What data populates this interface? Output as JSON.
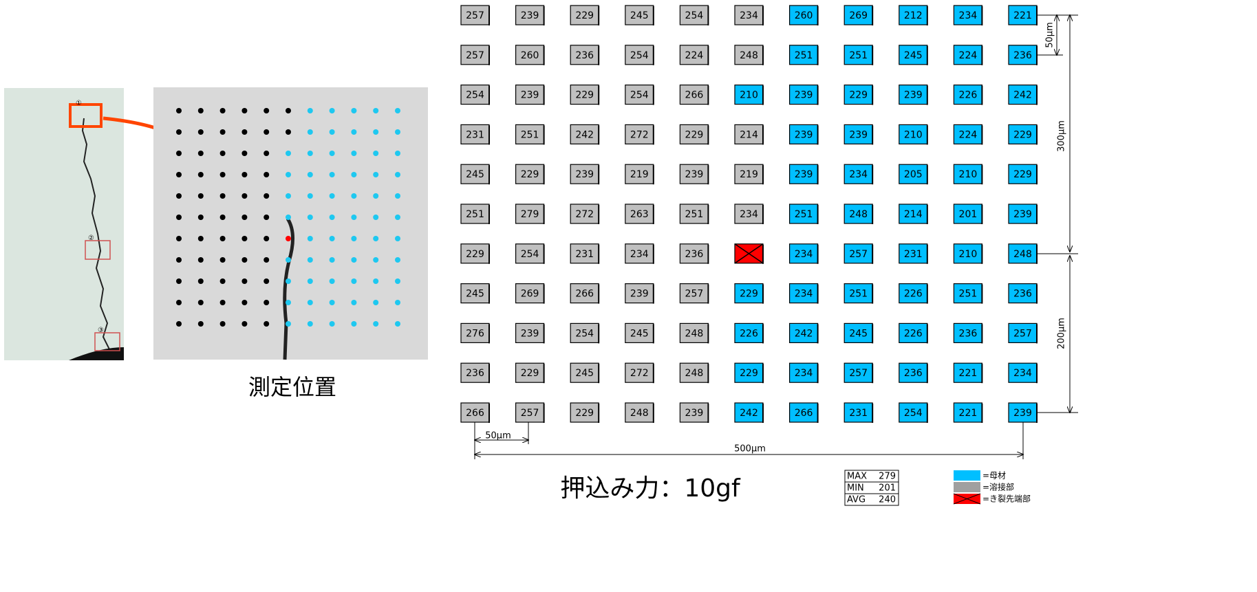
{
  "photo": {
    "markers": [
      "①",
      "②",
      "③"
    ],
    "caption": "測定位置"
  },
  "grid": {
    "cells": [
      [
        {
          "value": 257,
          "color": "#c0c0c0"
        },
        {
          "value": 239,
          "color": "#c0c0c0"
        },
        {
          "value": 229,
          "color": "#c0c0c0"
        },
        {
          "value": 245,
          "color": "#c0c0c0"
        },
        {
          "value": 254,
          "color": "#c0c0c0"
        },
        {
          "value": 234,
          "color": "#c0c0c0"
        },
        {
          "value": 260,
          "color": "#00bfff"
        },
        {
          "value": 269,
          "color": "#00bfff"
        },
        {
          "value": 212,
          "color": "#00bfff"
        },
        {
          "value": 234,
          "color": "#00bfff"
        },
        {
          "value": 221,
          "color": "#00bfff"
        }
      ],
      [
        {
          "value": 257,
          "color": "#c0c0c0"
        },
        {
          "value": 260,
          "color": "#c0c0c0"
        },
        {
          "value": 236,
          "color": "#c0c0c0"
        },
        {
          "value": 254,
          "color": "#c0c0c0"
        },
        {
          "value": 224,
          "color": "#c0c0c0"
        },
        {
          "value": 248,
          "color": "#c0c0c0"
        },
        {
          "value": 251,
          "color": "#00bfff"
        },
        {
          "value": 251,
          "color": "#00bfff"
        },
        {
          "value": 245,
          "color": "#00bfff"
        },
        {
          "value": 224,
          "color": "#00bfff"
        },
        {
          "value": 236,
          "color": "#00bfff"
        }
      ],
      [
        {
          "value": 254,
          "color": "#c0c0c0"
        },
        {
          "value": 239,
          "color": "#c0c0c0"
        },
        {
          "value": 229,
          "color": "#c0c0c0"
        },
        {
          "value": 254,
          "color": "#c0c0c0"
        },
        {
          "value": 266,
          "color": "#c0c0c0"
        },
        {
          "value": 210,
          "color": "#00bfff"
        },
        {
          "value": 239,
          "color": "#00bfff"
        },
        {
          "value": 229,
          "color": "#00bfff"
        },
        {
          "value": 239,
          "color": "#00bfff"
        },
        {
          "value": 226,
          "color": "#00bfff"
        },
        {
          "value": 242,
          "color": "#00bfff"
        }
      ],
      [
        {
          "value": 231,
          "color": "#c0c0c0"
        },
        {
          "value": 251,
          "color": "#c0c0c0"
        },
        {
          "value": 242,
          "color": "#c0c0c0"
        },
        {
          "value": 272,
          "color": "#c0c0c0"
        },
        {
          "value": 229,
          "color": "#c0c0c0"
        },
        {
          "value": 214,
          "color": "#c0c0c0"
        },
        {
          "value": 239,
          "color": "#00bfff"
        },
        {
          "value": 239,
          "color": "#00bfff"
        },
        {
          "value": 210,
          "color": "#00bfff"
        },
        {
          "value": 224,
          "color": "#00bfff"
        },
        {
          "value": 229,
          "color": "#00bfff"
        }
      ],
      [
        {
          "value": 245,
          "color": "#c0c0c0"
        },
        {
          "value": 229,
          "color": "#c0c0c0"
        },
        {
          "value": 239,
          "color": "#c0c0c0"
        },
        {
          "value": 219,
          "color": "#c0c0c0"
        },
        {
          "value": 239,
          "color": "#c0c0c0"
        },
        {
          "value": 219,
          "color": "#c0c0c0"
        },
        {
          "value": 239,
          "color": "#00bfff"
        },
        {
          "value": 234,
          "color": "#00bfff"
        },
        {
          "value": 205,
          "color": "#00bfff"
        },
        {
          "value": 210,
          "color": "#00bfff"
        },
        {
          "value": 229,
          "color": "#00bfff"
        }
      ],
      [
        {
          "value": 251,
          "color": "#c0c0c0"
        },
        {
          "value": 279,
          "color": "#c0c0c0"
        },
        {
          "value": 272,
          "color": "#c0c0c0"
        },
        {
          "value": 263,
          "color": "#c0c0c0"
        },
        {
          "value": 251,
          "color": "#c0c0c0"
        },
        {
          "value": 234,
          "color": "#c0c0c0"
        },
        {
          "value": 251,
          "color": "#00bfff"
        },
        {
          "value": 248,
          "color": "#00bfff"
        },
        {
          "value": 214,
          "color": "#00bfff"
        },
        {
          "value": 201,
          "color": "#00bfff"
        },
        {
          "value": 239,
          "color": "#00bfff"
        }
      ],
      [
        {
          "value": 229,
          "color": "#c0c0c0"
        },
        {
          "value": 254,
          "color": "#c0c0c0"
        },
        {
          "value": 231,
          "color": "#c0c0c0"
        },
        {
          "value": 234,
          "color": "#c0c0c0"
        },
        {
          "value": 236,
          "color": "#c0c0c0"
        },
        {
          "value": null,
          "color": "#ff0000"
        },
        {
          "value": 234,
          "color": "#00bfff"
        },
        {
          "value": 257,
          "color": "#00bfff"
        },
        {
          "value": 231,
          "color": "#00bfff"
        },
        {
          "value": 210,
          "color": "#00bfff"
        },
        {
          "value": 248,
          "color": "#00bfff"
        }
      ],
      [
        {
          "value": 245,
          "color": "#c0c0c0"
        },
        {
          "value": 269,
          "color": "#c0c0c0"
        },
        {
          "value": 266,
          "color": "#c0c0c0"
        },
        {
          "value": 239,
          "color": "#c0c0c0"
        },
        {
          "value": 257,
          "color": "#c0c0c0"
        },
        {
          "value": 229,
          "color": "#00bfff"
        },
        {
          "value": 234,
          "color": "#00bfff"
        },
        {
          "value": 251,
          "color": "#00bfff"
        },
        {
          "value": 226,
          "color": "#00bfff"
        },
        {
          "value": 251,
          "color": "#00bfff"
        },
        {
          "value": 236,
          "color": "#00bfff"
        }
      ],
      [
        {
          "value": 276,
          "color": "#c0c0c0"
        },
        {
          "value": 239,
          "color": "#c0c0c0"
        },
        {
          "value": 254,
          "color": "#c0c0c0"
        },
        {
          "value": 245,
          "color": "#c0c0c0"
        },
        {
          "value": 248,
          "color": "#c0c0c0"
        },
        {
          "value": 226,
          "color": "#00bfff"
        },
        {
          "value": 242,
          "color": "#00bfff"
        },
        {
          "value": 245,
          "color": "#00bfff"
        },
        {
          "value": 226,
          "color": "#00bfff"
        },
        {
          "value": 236,
          "color": "#00bfff"
        },
        {
          "value": 257,
          "color": "#00bfff"
        }
      ],
      [
        {
          "value": 236,
          "color": "#c0c0c0"
        },
        {
          "value": 229,
          "color": "#c0c0c0"
        },
        {
          "value": 245,
          "color": "#c0c0c0"
        },
        {
          "value": 272,
          "color": "#c0c0c0"
        },
        {
          "value": 248,
          "color": "#c0c0c0"
        },
        {
          "value": 229,
          "color": "#00bfff"
        },
        {
          "value": 234,
          "color": "#00bfff"
        },
        {
          "value": 257,
          "color": "#00bfff"
        },
        {
          "value": 236,
          "color": "#00bfff"
        },
        {
          "value": 221,
          "color": "#00bfff"
        },
        {
          "value": 234,
          "color": "#00bfff"
        }
      ],
      [
        {
          "value": 266,
          "color": "#c0c0c0"
        },
        {
          "value": 257,
          "color": "#c0c0c0"
        },
        {
          "value": 229,
          "color": "#c0c0c0"
        },
        {
          "value": 248,
          "color": "#c0c0c0"
        },
        {
          "value": 239,
          "color": "#c0c0c0"
        },
        {
          "value": 242,
          "color": "#00bfff"
        },
        {
          "value": 266,
          "color": "#00bfff"
        },
        {
          "value": 231,
          "color": "#00bfff"
        },
        {
          "value": 254,
          "color": "#00bfff"
        },
        {
          "value": 221,
          "color": "#00bfff"
        },
        {
          "value": 239,
          "color": "#00bfff"
        }
      ]
    ],
    "dimensions": {
      "pitch_x": "50μm",
      "span_x": "500μm",
      "pitch_y": "50μm",
      "span_y_top": "300μm",
      "span_y_bottom": "200μm"
    }
  },
  "load": "押込み力：10gf",
  "stats": [
    {
      "label": "MAX",
      "value": 279
    },
    {
      "label": "MIN",
      "value": 201
    },
    {
      "label": "AVG",
      "value": 240
    }
  ],
  "legend": [
    {
      "label": "=母材",
      "color": "#00bfff"
    },
    {
      "label": "=溶接部",
      "color": "#a0a0a0"
    },
    {
      "label": "=き裂先端部",
      "color": "#ff0000"
    }
  ]
}
